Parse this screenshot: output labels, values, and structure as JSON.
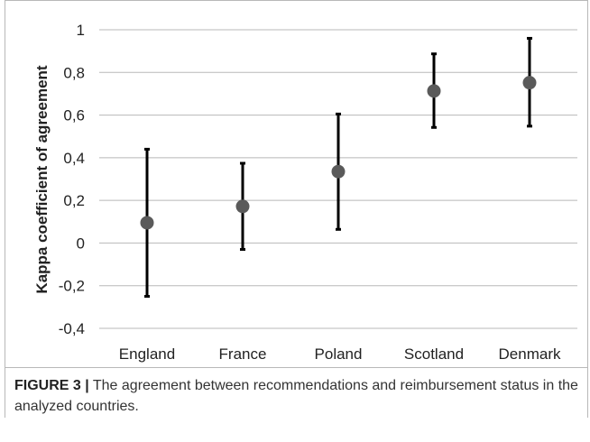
{
  "chart_data": {
    "type": "scatter",
    "categories": [
      "England",
      "France",
      "Poland",
      "Scotland",
      "Denmark"
    ],
    "values": [
      0.095,
      0.172,
      0.335,
      0.713,
      0.752
    ],
    "error_low": [
      -0.25,
      -0.03,
      0.064,
      0.542,
      0.548
    ],
    "error_high": [
      0.44,
      0.374,
      0.605,
      0.887,
      0.96
    ],
    "title": "",
    "xlabel": "",
    "ylabel": "Kappa coefficient of agreement",
    "ylim": [
      -0.4,
      1.0
    ],
    "yticks": [
      "1",
      "0,8",
      "0,6",
      "0,4",
      "0,2",
      "0",
      "-0,2",
      "-0,4"
    ],
    "ytick_values": [
      1.0,
      0.8,
      0.6,
      0.4,
      0.2,
      0.0,
      -0.2,
      -0.4
    ],
    "grid": true,
    "point_color": "#5a5a5a",
    "errorbar_color": "#000000"
  },
  "caption": {
    "label": "FIGURE 3 |",
    "text": " The agreement between recommendations and reimbursement status in the analyzed countries."
  }
}
